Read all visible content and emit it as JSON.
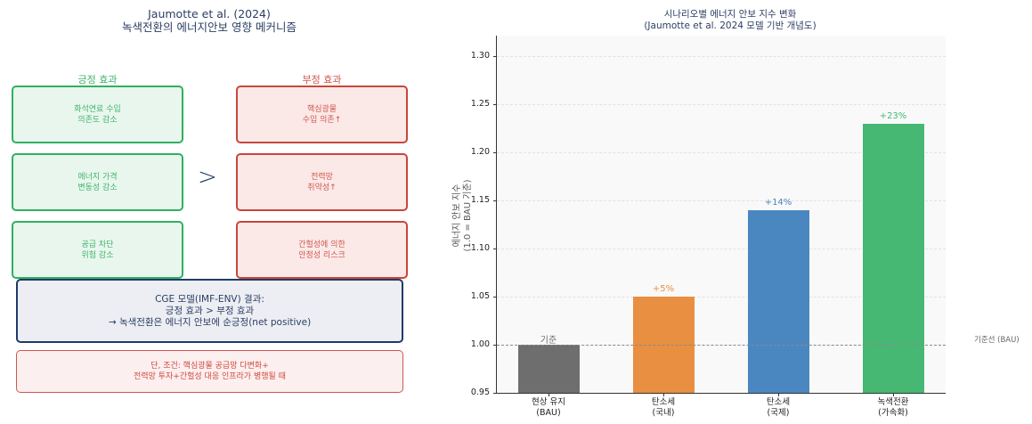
{
  "left_panel": {
    "title_line1": "Jaumotte et al. (2024)",
    "title_line2": "녹색전환의 에너지안보 영향 메커니즘",
    "positive_header": "긍정 효과",
    "negative_header": "부정 효과",
    "comparison_symbol": ">",
    "positive_effects": [
      "화석연료 수입\n의존도 감소",
      "에너지 가격\n변동성 감소",
      "공급 차단\n위험 감소"
    ],
    "negative_effects": [
      "핵심광물\n수입 의존↑",
      "전력망\n취약성↑",
      "간헐성에 의한\n안정성 리스크"
    ],
    "result_box": "CGE 모델(IMF-ENV) 결과:\n긍정 효과 > 부정 효과\n→ 녹색전환은 에너지 안보에 순긍정(net positive)",
    "condition_box": "단, 조건: 핵심광물 공급망 다변화+\n전력망 투자+간헐성 대응 인프라가 병행될 때",
    "colors": {
      "positive": "#2fb060",
      "negative": "#c8463b",
      "result": "#1f3a68"
    }
  },
  "chart_data": {
    "type": "bar",
    "title": "시나리오별 에너지 안보 지수 변화\n(Jaumotte et al. 2024 모델 기반 개념도)",
    "title_line1": "시나리오별 에너지 안보 지수 변화",
    "title_line2": "(Jaumotte et al. 2024 모델 기반 개념도)",
    "xlabel": "",
    "ylabel": "에너지 안보 지수\n(1.0 = BAU 기준)",
    "ylabel_line1": "에너지 안보 지수",
    "ylabel_line2": "(1.0 = BAU 기준)",
    "ylim": [
      0.95,
      1.32
    ],
    "yticks": [
      "0.95",
      "1.00",
      "1.05",
      "1.10",
      "1.15",
      "1.20",
      "1.25",
      "1.30"
    ],
    "grid": true,
    "categories": [
      "현상 유지\n(BAU)",
      "탄소세\n(국내)",
      "탄소세\n(국제)",
      "녹색전환\n(가속화)"
    ],
    "values": [
      1.0,
      1.05,
      1.14,
      1.23
    ],
    "bar_labels": [
      "기준",
      "+5%",
      "+14%",
      "+23%"
    ],
    "bar_colors": [
      "#6e6e6e",
      "#e98f41",
      "#4a87c0",
      "#46b874"
    ],
    "label_colors": [
      "#6e6e6e",
      "#e98f41",
      "#4a87c0",
      "#46b874"
    ],
    "reference_line": {
      "value": 1.0,
      "style": "dashed",
      "label": "기준선 (BAU)"
    }
  }
}
